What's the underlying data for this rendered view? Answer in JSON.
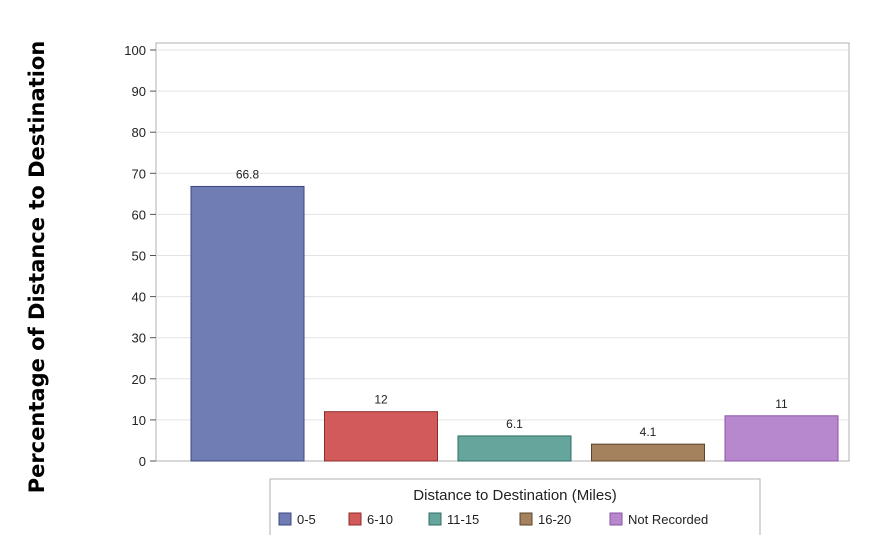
{
  "chart_data": {
    "type": "bar",
    "xlabel": "",
    "ylabel": "Percentage of Distance to Destination",
    "ylim": [
      0,
      100
    ],
    "yticks": [
      "0",
      "10",
      "20",
      "30",
      "40",
      "50",
      "60",
      "70",
      "80",
      "90",
      "100"
    ],
    "grid": true,
    "categories": [
      "0-5",
      "6-10",
      "11-15",
      "16-20",
      "Not Recorded"
    ],
    "values": [
      66.8,
      12,
      6.1,
      4.1,
      11
    ],
    "data_labels": [
      "66.8",
      "12",
      "6.1",
      "4.1",
      "11"
    ],
    "colors": [
      "#6f7db4",
      "#d35a5a",
      "#66a59b",
      "#a4825d",
      "#b888cf"
    ],
    "edge_colors": [
      "#3c4680",
      "#8f2a2a",
      "#2f6e66",
      "#5e4429",
      "#8a55a6"
    ],
    "legend": {
      "title": "Distance to Destination (Miles)",
      "placement": "bottom-center",
      "entries": [
        "0-5",
        "6-10",
        "11-15",
        "16-20",
        "Not Recorded"
      ]
    }
  }
}
